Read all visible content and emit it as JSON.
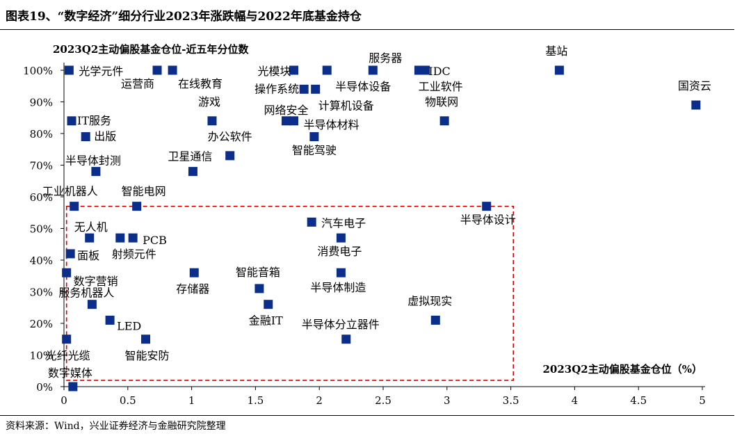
{
  "figure": {
    "title": "图表19、“数字经济”细分行业2023年涨跌幅与2022年底基金持仓",
    "source": "资料来源：Wind，兴业证券经济与金融研究院整理"
  },
  "chart_data": {
    "type": "scatter",
    "ylabel": "2023Q2主动偏股基金仓位-近五年分位数",
    "xlabel": "2023Q2主动偏股基金仓位（%）",
    "x_ticks": [
      "0",
      "0.5",
      "1",
      "1.5",
      "2",
      "2.5",
      "3",
      "3.5",
      "4",
      "4.5",
      "5"
    ],
    "y_ticks": [
      "0%",
      "10%",
      "20%",
      "30%",
      "40%",
      "50%",
      "60%",
      "70%",
      "80%",
      "90%",
      "100%"
    ],
    "xlim": [
      0,
      5
    ],
    "ylim": [
      0,
      100
    ],
    "marker_color": "#0b2e8a",
    "highlight_box_color": "#cc0000",
    "highlight_box": {
      "x": [
        0.02,
        3.52
      ],
      "y": [
        2,
        57
      ]
    },
    "points": [
      {
        "label": "光学元件",
        "x": 0.04,
        "y": 100
      },
      {
        "label": "运营商",
        "x": 0.73,
        "y": 100
      },
      {
        "label": "在线教育",
        "x": 0.85,
        "y": 100
      },
      {
        "label": "光模块",
        "x": 1.8,
        "y": 100
      },
      {
        "label": "半导体设备",
        "x": 2.06,
        "y": 100
      },
      {
        "label": "服务器",
        "x": 2.42,
        "y": 100
      },
      {
        "label": "IDC",
        "x": 2.78,
        "y": 100
      },
      {
        "label": "工业软件",
        "x": 2.83,
        "y": 100
      },
      {
        "label": "基站",
        "x": 3.88,
        "y": 100
      },
      {
        "label": "操作系统",
        "x": 1.88,
        "y": 94
      },
      {
        "label": "计算机设备",
        "x": 1.97,
        "y": 94
      },
      {
        "label": "国资云",
        "x": 4.95,
        "y": 89
      },
      {
        "label": "IT服务",
        "x": 0.06,
        "y": 84
      },
      {
        "label": "游戏",
        "x": 1.16,
        "y": 84
      },
      {
        "label": "网络安全",
        "x": 1.74,
        "y": 84
      },
      {
        "label": "半导体材料",
        "x": 1.8,
        "y": 84
      },
      {
        "label": "物联网",
        "x": 2.98,
        "y": 84
      },
      {
        "label": "出版",
        "x": 0.17,
        "y": 79
      },
      {
        "label": "智能驾驶",
        "x": 1.96,
        "y": 79
      },
      {
        "label": "办公软件",
        "x": 1.3,
        "y": 73
      },
      {
        "label": "半导体封测",
        "x": 0.25,
        "y": 68
      },
      {
        "label": "卫星通信",
        "x": 1.01,
        "y": 68
      },
      {
        "label": "工业机器人",
        "x": 0.08,
        "y": 57
      },
      {
        "label": "智能电网",
        "x": 0.57,
        "y": 57
      },
      {
        "label": "半导体设计",
        "x": 3.31,
        "y": 57
      },
      {
        "label": "汽车电子",
        "x": 1.94,
        "y": 52
      },
      {
        "label": "无人机",
        "x": 0.2,
        "y": 47
      },
      {
        "label": "射频元件",
        "x": 0.44,
        "y": 47
      },
      {
        "label": "PCB",
        "x": 0.54,
        "y": 47
      },
      {
        "label": "消费电子",
        "x": 2.17,
        "y": 47
      },
      {
        "label": "面板",
        "x": 0.05,
        "y": 42
      },
      {
        "label": "数字营销",
        "x": 0.02,
        "y": 36
      },
      {
        "label": "存储器",
        "x": 1.02,
        "y": 36
      },
      {
        "label": "半导体制造",
        "x": 2.17,
        "y": 36
      },
      {
        "label": "智能音箱",
        "x": 1.53,
        "y": 31
      },
      {
        "label": "服务机器人",
        "x": 0.22,
        "y": 26
      },
      {
        "label": "金融IT",
        "x": 1.6,
        "y": 26
      },
      {
        "label": "虚拟现实",
        "x": 2.91,
        "y": 21
      },
      {
        "label": "LED",
        "x": 0.36,
        "y": 21
      },
      {
        "label": "光纤光缆",
        "x": 0.02,
        "y": 15
      },
      {
        "label": "智能安防",
        "x": 0.64,
        "y": 15
      },
      {
        "label": "半导体分立器件",
        "x": 2.21,
        "y": 15
      },
      {
        "label": "数字媒体",
        "x": 0.07,
        "y": 0
      }
    ]
  }
}
